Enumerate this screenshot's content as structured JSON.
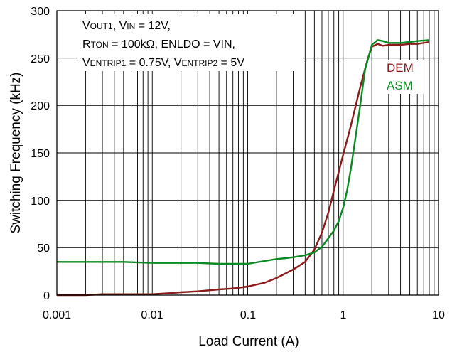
{
  "chart_data": {
    "type": "line",
    "xlabel": "Load Current (A)",
    "ylabel": "Switching Frequency (kHz)",
    "x_scale": "log",
    "xlim": [
      0.001,
      10
    ],
    "ylim": [
      0,
      300
    ],
    "grid": true,
    "x_ticks": [
      "0.001",
      "0.01",
      "0.1",
      "1",
      "10"
    ],
    "y_ticks": [
      "0",
      "50",
      "100",
      "150",
      "200",
      "250",
      "300"
    ],
    "annotation": {
      "line1": {
        "a": "V",
        "a_sub": "OUT1",
        "b": ", V",
        "b_sub": "IN",
        "c": " = 12V,"
      },
      "line2": {
        "a": "R",
        "a_sub": "TON",
        "b": " = 100kΩ, ENLDO = VIN,"
      },
      "line3": {
        "a": "V",
        "a_sub": "ENTRIP1",
        "b": " = 0.75V, V",
        "b_sub": "ENTRIP2",
        "c": " = 5V"
      }
    },
    "legend_placement": "right, below annotation",
    "series": [
      {
        "name": "DEM",
        "color": "#8b1a1a",
        "x": [
          0.001,
          0.002,
          0.003,
          0.005,
          0.01,
          0.015,
          0.02,
          0.03,
          0.05,
          0.07,
          0.1,
          0.15,
          0.2,
          0.3,
          0.4,
          0.5,
          0.6,
          0.7,
          0.8,
          1.0,
          1.2,
          1.5,
          1.8,
          2.0,
          2.3,
          2.6,
          3.0,
          4.0,
          5.0,
          6.0,
          8.0
        ],
        "y": [
          0,
          0,
          1,
          1,
          1,
          2,
          3,
          4,
          6,
          7,
          9,
          13,
          18,
          27,
          35,
          48,
          66,
          87,
          110,
          148,
          178,
          218,
          248,
          262,
          265,
          263,
          264,
          264,
          265,
          265,
          267
        ]
      },
      {
        "name": "ASM",
        "color": "#0a8a22",
        "x": [
          0.001,
          0.005,
          0.01,
          0.03,
          0.05,
          0.1,
          0.15,
          0.2,
          0.25,
          0.3,
          0.4,
          0.5,
          0.6,
          0.7,
          0.8,
          0.9,
          1.0,
          1.1,
          1.2,
          1.3,
          1.5,
          1.7,
          2.0,
          2.3,
          2.6,
          3.0,
          4.0,
          5.0,
          6.0,
          8.0
        ],
        "y": [
          35,
          35,
          34,
          34,
          33,
          33,
          36,
          38,
          39,
          40,
          42,
          45,
          51,
          60,
          68,
          78,
          92,
          110,
          132,
          155,
          198,
          238,
          264,
          269,
          268,
          266,
          266,
          267,
          268,
          269
        ]
      }
    ]
  }
}
